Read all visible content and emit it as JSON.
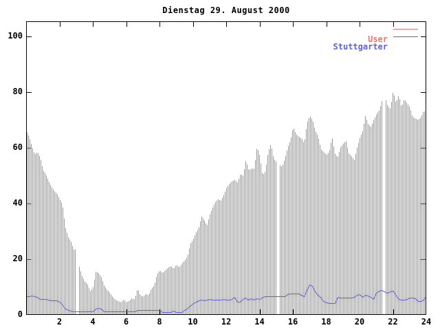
{
  "title": "Dienstag 29. August 2000",
  "colors": {
    "user": "#f47171",
    "stuttgarter": "#5e5ee8",
    "axis": "#000000",
    "background": "#ffffff"
  },
  "legend": {
    "position": "top-right-inside",
    "entries": [
      {
        "label": "User",
        "color_key": "user"
      },
      {
        "label": "Stuttgarter",
        "color_key": "stuttgarter"
      }
    ]
  },
  "chart_data": {
    "type": "bar",
    "title": "Dienstag 29. August 2000",
    "xlabel": "",
    "ylabel": "",
    "xlim": [
      0,
      24
    ],
    "ylim": [
      0,
      105.4
    ],
    "xticks": [
      2,
      4,
      6,
      8,
      10,
      12,
      14,
      16,
      18,
      20,
      22,
      24
    ],
    "yticks": [
      0,
      20,
      40,
      60,
      80,
      100
    ],
    "grid": false,
    "x_unit": "hour-of-day",
    "x_start": 0,
    "x_step_hours": 0.166667,
    "gaps_hours": [
      3.07,
      15.09,
      21.43
    ],
    "series": [
      {
        "name": "User",
        "style": "impulses",
        "color_key": "user",
        "values": [
          66,
          64,
          60.5,
          57.5,
          58.5,
          56.5,
          52,
          50.5,
          48,
          46,
          44.5,
          43.5,
          41.5,
          39.5,
          31.5,
          28,
          26.5,
          23.5,
          23.5,
          17.5,
          14,
          12,
          11,
          8.5,
          10,
          15.5,
          15,
          13.5,
          10.5,
          9,
          8,
          6.5,
          5.5,
          5,
          4.5,
          5.5,
          4.5,
          5,
          6,
          5.5,
          9.5,
          7,
          6.5,
          7.5,
          7,
          9.5,
          10.5,
          14.5,
          16,
          15,
          16,
          17,
          17.5,
          16.5,
          18,
          17,
          18.5,
          19.5,
          21,
          25.5,
          27,
          29.5,
          31,
          35.5,
          34,
          32,
          36,
          38.5,
          40.5,
          41.5,
          41,
          43,
          45.5,
          47,
          48,
          48.5,
          47.5,
          50.5,
          50,
          55.5,
          52,
          52.5,
          52.5,
          60.5,
          57,
          50,
          51.5,
          58.5,
          61.5,
          56,
          55,
          54,
          53,
          56,
          60,
          62.5,
          67.5,
          65,
          64,
          63.5,
          61.5,
          69,
          71.5,
          70,
          66,
          64,
          59.5,
          58.5,
          57.5,
          58.5,
          64,
          58,
          56.5,
          60,
          61.5,
          62.5,
          58,
          57,
          55.5,
          60,
          63.5,
          66,
          71.5,
          68.5,
          67.5,
          70,
          72,
          73.5,
          77,
          78.5,
          75,
          74,
          80.5,
          76,
          79,
          74.5,
          77.5,
          76,
          74.5,
          71,
          70.5,
          70,
          71,
          73.5,
          72
        ]
      },
      {
        "name": "Stuttgarter",
        "style": "line",
        "color_key": "stuttgarter",
        "values": [
          6.7,
          6.7,
          6.9,
          6.7,
          6.4,
          5.8,
          5.8,
          5.7,
          5.4,
          5.2,
          5.2,
          5.2,
          4.7,
          3.4,
          2.2,
          1.7,
          1.4,
          1.3,
          1.3,
          1.2,
          1.2,
          1.2,
          1.2,
          1.2,
          1.3,
          2.3,
          2.5,
          2.2,
          1.3,
          1.2,
          1.2,
          1.2,
          1.2,
          1.2,
          1.2,
          1.2,
          1.2,
          1.2,
          1.2,
          1.2,
          1.8,
          1.8,
          1.8,
          1.8,
          1.8,
          1.8,
          1.8,
          1.8,
          1.8,
          0.9,
          0.9,
          0.9,
          0.9,
          1.6,
          1.0,
          1.0,
          1.0,
          1.7,
          2.3,
          3.2,
          4.3,
          4.8,
          5.3,
          5.5,
          5.3,
          5.5,
          5.6,
          5.5,
          5.5,
          5.5,
          5.5,
          5.6,
          5.5,
          5.5,
          5.8,
          6.4,
          4.6,
          4.6,
          5.6,
          6.2,
          5.4,
          5.9,
          5.4,
          5.9,
          5.6,
          6.5,
          6.7,
          6.6,
          6.6,
          6.6,
          6.6,
          6.6,
          6.6,
          6.7,
          7.5,
          7.6,
          7.6,
          7.6,
          7.6,
          7.2,
          6.7,
          8.9,
          10.8,
          10.3,
          8.4,
          7.2,
          6.4,
          4.9,
          4.4,
          4.2,
          4.2,
          4.3,
          6.3,
          6.2,
          6.2,
          6.2,
          6.2,
          6.2,
          6.4,
          7.2,
          7.4,
          6.4,
          7.2,
          6.9,
          6.3,
          5.8,
          7.9,
          8.6,
          8.8,
          8.4,
          7.8,
          8.4,
          8.6,
          6.9,
          5.6,
          5.4,
          5.4,
          5.6,
          6.2,
          6.2,
          5.9,
          4.9,
          4.9,
          5.4,
          6.9
        ]
      }
    ]
  }
}
